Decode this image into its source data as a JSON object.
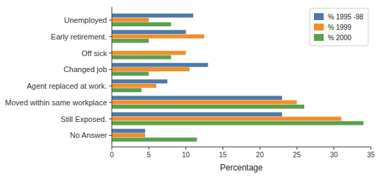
{
  "chart_data": {
    "type": "bar",
    "orientation": "horizontal",
    "categories": [
      "No Answer",
      "Still Exposed.",
      "Moved within same workplace",
      "Agent replaced at work.",
      "Changed job",
      "Off sick",
      "Early retirement.",
      "Unemployed"
    ],
    "series": [
      {
        "name": "% 1995 -98",
        "values": [
          4.5,
          23.0,
          23.0,
          7.5,
          13.0,
          0.0,
          10.0,
          11.0
        ]
      },
      {
        "name": "% 1999",
        "values": [
          4.5,
          31.0,
          25.0,
          6.0,
          10.5,
          10.0,
          12.5,
          5.0
        ]
      },
      {
        "name": "% 2000",
        "values": [
          11.5,
          34.0,
          26.0,
          4.0,
          5.0,
          8.0,
          5.0,
          8.0
        ]
      }
    ],
    "xlabel": "Percentage",
    "xlim": [
      0,
      35
    ],
    "xticks": [
      0,
      5,
      10,
      15,
      20,
      25,
      30,
      35
    ],
    "grid": false,
    "legend": "upper right"
  }
}
